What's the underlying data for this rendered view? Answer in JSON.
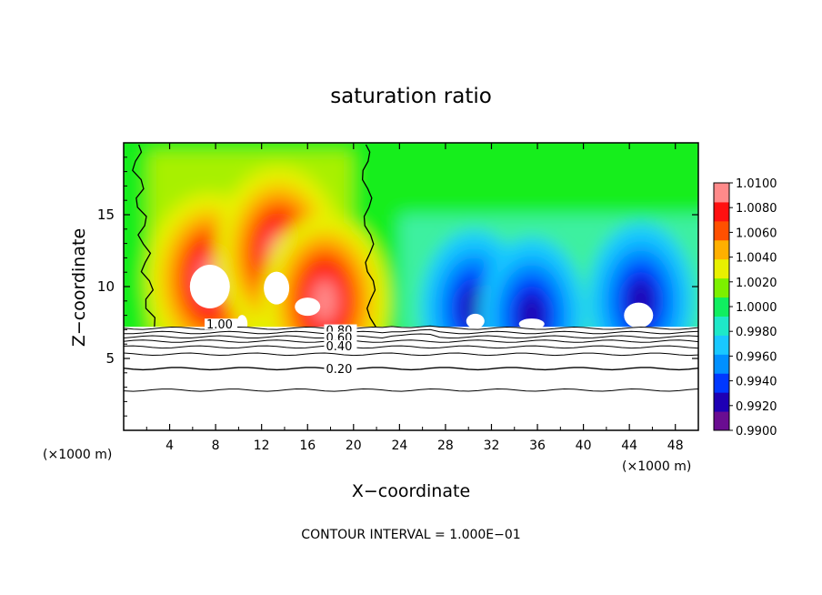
{
  "chart_data": {
    "type": "heatmap",
    "title": "saturation ratio",
    "xlabel": "X−coordinate",
    "ylabel": "Z−coordinate",
    "x_unit_left": "(×1000 m)",
    "x_unit_right": "(×1000 m)",
    "xlim": [
      0,
      50
    ],
    "ylim": [
      0,
      20
    ],
    "x_ticks": [
      4,
      8,
      12,
      16,
      20,
      24,
      28,
      32,
      36,
      40,
      44,
      48
    ],
    "y_ticks": [
      5,
      10,
      15
    ],
    "footer": "CONTOUR INTERVAL = 1.000E−01",
    "colorbar": {
      "labels": [
        "1.0100",
        "1.0080",
        "1.0060",
        "1.0040",
        "1.0020",
        "1.0000",
        "0.9980",
        "0.9960",
        "0.9940",
        "0.9920",
        "0.9900"
      ],
      "min": 0.99,
      "max": 1.01,
      "colors": [
        "#6a0d91",
        "#1e00b4",
        "#0038ff",
        "#0090ff",
        "#19c8ff",
        "#1ee8c8",
        "#10ee60",
        "#7cf000",
        "#e8f000",
        "#ffb000",
        "#ff5000",
        "#ff1010",
        "#ff8a8a"
      ]
    },
    "contour_labels": [
      {
        "text": "1.00",
        "x": 7.2,
        "z": 7.2
      },
      {
        "text": "0.80",
        "x": 17.6,
        "z": 6.8
      },
      {
        "text": "0.60",
        "x": 17.6,
        "z": 6.3
      },
      {
        "text": "0.40",
        "x": 17.6,
        "z": 5.7
      },
      {
        "text": "0.20",
        "x": 17.6,
        "z": 4.1
      }
    ],
    "contour_levels_below": [
      7.1,
      6.8,
      6.5,
      6.2,
      5.8,
      5.3,
      4.3,
      2.8
    ],
    "cloud_top_z": 7.2,
    "saturation_boundary_x": [
      1.0,
      21.0
    ],
    "supersaturated_peaks": [
      {
        "x": 7.5,
        "z": 10.5,
        "max": 1.01
      },
      {
        "x": 13.5,
        "z": 12.3,
        "max": 1.01
      },
      {
        "x": 17.5,
        "z": 9.0,
        "max": 1.008
      }
    ],
    "subsaturated_peaks": [
      {
        "x": 30.5,
        "z": 8.5,
        "min": 0.991
      },
      {
        "x": 35.5,
        "z": 8.0,
        "min": 0.992
      },
      {
        "x": 45.0,
        "z": 9.0,
        "min": 0.991
      }
    ]
  }
}
